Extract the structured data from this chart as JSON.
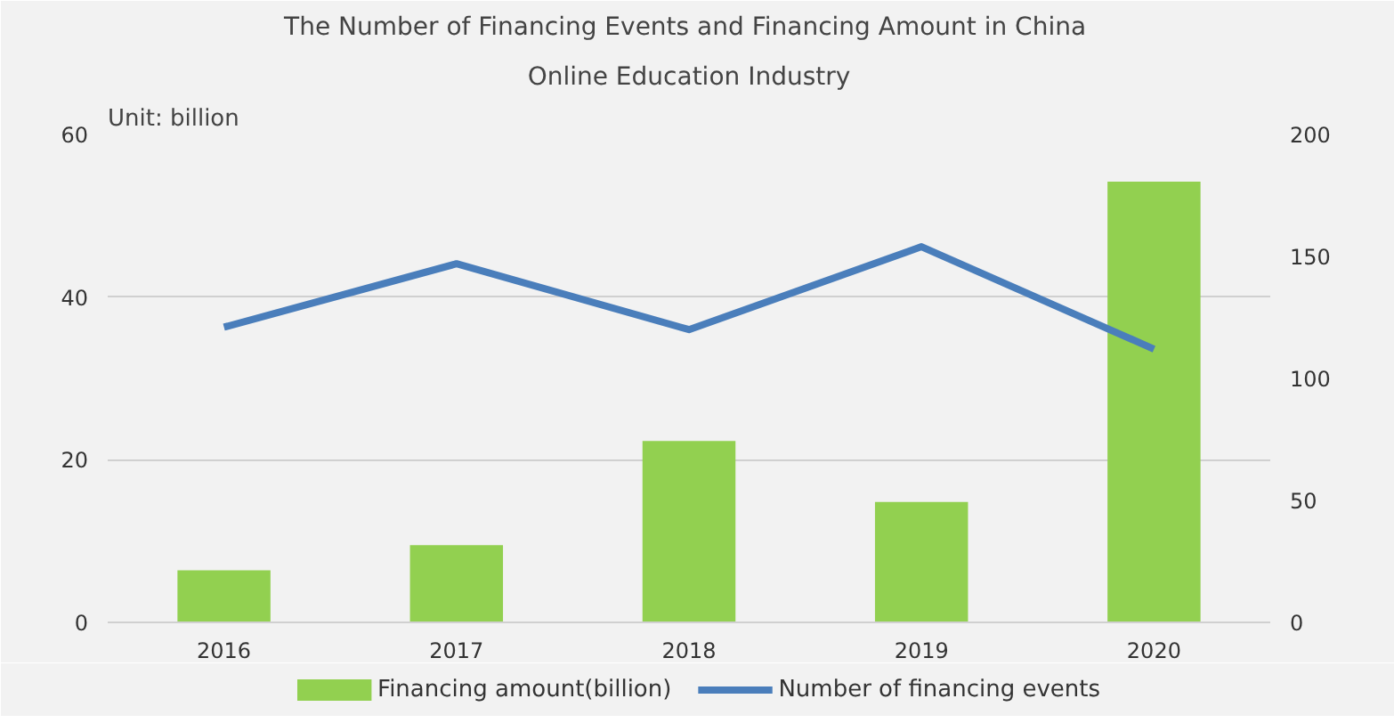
{
  "chart_data": {
    "type": "bar",
    "title": "The Number of Financing Events and Financing Amount in  China",
    "subtitle": "Online Education Industry",
    "annotations": [
      "Unit:   billion"
    ],
    "categories": [
      "2016",
      "2017",
      "2018",
      "2019",
      "2020"
    ],
    "series": [
      {
        "name": "Financing amount(billion)",
        "color": "#92d050",
        "values": [
          6.4,
          9.5,
          22.3,
          14.8,
          54.2
        ]
      },
      {
        "name": "Number of financing events",
        "type": "line",
        "axis": "y2",
        "color": "#4a7ebb",
        "values": [
          121,
          147,
          120,
          154,
          112
        ]
      }
    ],
    "ylim": [
      0,
      60
    ],
    "yticks": [
      0,
      20,
      40,
      60
    ],
    "y2lim": [
      0,
      200
    ],
    "y2ticks": [
      0,
      50,
      100,
      150,
      200
    ],
    "grid": "y",
    "legend": "bottom",
    "line_style": "solid",
    "marker": "none"
  }
}
